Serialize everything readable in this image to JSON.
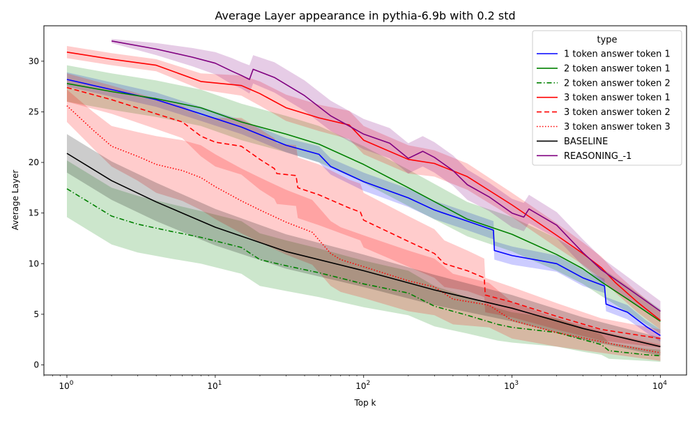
{
  "chart_data": {
    "type": "line",
    "title": "Average Layer appearance in pythia-6.9b with 0.2 std",
    "xlabel": "Top k",
    "ylabel": "Average Layer",
    "xscale": "log",
    "xlim": [
      0.7,
      15000
    ],
    "ylim": [
      -1,
      33.5
    ],
    "x_ticks": [
      {
        "value": 1,
        "base": "10",
        "exp": "0"
      },
      {
        "value": 10,
        "base": "10",
        "exp": "1"
      },
      {
        "value": 100,
        "base": "10",
        "exp": "2"
      },
      {
        "value": 1000,
        "base": "10",
        "exp": "3"
      },
      {
        "value": 10000,
        "base": "10",
        "exp": "4"
      }
    ],
    "y_ticks": [
      {
        "value": 0,
        "label": "0"
      },
      {
        "value": 5,
        "label": "5"
      },
      {
        "value": 10,
        "label": "10"
      },
      {
        "value": 15,
        "label": "15"
      },
      {
        "value": 20,
        "label": "20"
      },
      {
        "value": 25,
        "label": "25"
      },
      {
        "value": 30,
        "label": "30"
      }
    ],
    "grid": false,
    "legend": {
      "title": "type",
      "placement": "top-right"
    },
    "series": [
      {
        "name": "1 token answer token 1",
        "color": "#0000ff",
        "dash": "solid",
        "x": [
          1,
          2,
          4,
          8,
          15,
          30,
          50,
          60,
          100,
          200,
          300,
          500,
          750,
          760,
          1000,
          2000,
          3000,
          4200,
          4300,
          6000,
          8000,
          10000
        ],
        "y": [
          28.2,
          27.2,
          26.2,
          24.8,
          23.5,
          21.7,
          20.8,
          19.6,
          18.1,
          16.5,
          15.3,
          14.2,
          13.3,
          11.3,
          10.8,
          10.0,
          8.6,
          7.8,
          6.0,
          5.2,
          3.8,
          2.9
        ],
        "band": [
          0.7,
          0.7,
          0.7,
          0.7,
          0.7,
          0.7,
          0.8,
          0.8,
          0.9,
          0.9,
          0.9,
          0.9,
          0.9,
          0.9,
          0.9,
          0.8,
          0.8,
          0.7,
          0.7,
          0.7,
          0.6,
          0.6
        ]
      },
      {
        "name": "2 token answer token 1",
        "color": "#008000",
        "dash": "solid",
        "x": [
          1,
          2,
          4,
          8,
          15,
          30,
          50,
          100,
          200,
          500,
          1000,
          2000,
          3000,
          4000,
          6000,
          10000
        ],
        "y": [
          27.8,
          27.0,
          26.3,
          25.4,
          24.0,
          22.8,
          21.8,
          19.8,
          17.5,
          14.4,
          12.9,
          10.9,
          9.5,
          8.2,
          6.5,
          4.3
        ],
        "band": [
          1.8,
          1.8,
          1.8,
          1.8,
          1.8,
          1.8,
          1.8,
          1.8,
          1.8,
          1.7,
          1.7,
          1.6,
          1.5,
          1.4,
          1.3,
          1.2
        ]
      },
      {
        "name": "2 token answer token 2",
        "color": "#008000",
        "dash": "dashdot",
        "x": [
          1,
          2,
          3,
          5,
          8,
          15,
          20,
          30,
          50,
          100,
          200,
          300,
          500,
          800,
          1000,
          2000,
          3000,
          4000,
          4500,
          6000,
          8000,
          10000
        ],
        "y": [
          17.4,
          14.7,
          13.9,
          13.2,
          12.6,
          11.6,
          10.4,
          9.8,
          9.1,
          8.0,
          7.1,
          5.8,
          4.9,
          4.0,
          3.7,
          3.2,
          2.5,
          2.0,
          1.4,
          1.2,
          1.0,
          0.9
        ],
        "band": [
          2.8,
          2.8,
          2.8,
          2.7,
          2.6,
          2.6,
          2.6,
          2.5,
          2.4,
          2.3,
          2.2,
          2.0,
          1.8,
          1.6,
          1.5,
          1.4,
          1.2,
          1.0,
          0.8,
          0.7,
          0.6,
          0.6
        ]
      },
      {
        "name": "3 token answer token 1",
        "color": "#ff0000",
        "dash": "solid",
        "x": [
          1,
          2,
          4,
          8,
          15,
          20,
          30,
          50,
          80,
          100,
          200,
          300,
          500,
          1000,
          2000,
          3000,
          4000,
          5000,
          7000,
          10000
        ],
        "y": [
          30.9,
          30.2,
          29.6,
          28.0,
          27.6,
          26.8,
          25.4,
          24.4,
          23.7,
          22.2,
          20.3,
          19.9,
          18.6,
          15.8,
          12.8,
          11.0,
          9.6,
          8.1,
          6.2,
          4.4
        ],
        "band": [
          0.6,
          0.6,
          0.6,
          0.8,
          1.0,
          1.2,
          1.3,
          1.3,
          1.4,
          1.4,
          1.4,
          1.3,
          1.3,
          1.2,
          1.2,
          1.1,
          1.1,
          1.0,
          1.0,
          0.9
        ]
      },
      {
        "name": "3 token answer token 2",
        "color": "#ff0000",
        "dash": "dashed",
        "x": [
          1,
          2,
          4,
          6,
          8,
          10,
          15,
          20,
          25,
          26,
          35,
          36,
          50,
          80,
          95,
          100,
          200,
          300,
          350,
          500,
          650,
          660,
          1000,
          2000,
          4000,
          10000
        ],
        "y": [
          27.4,
          26.2,
          24.8,
          24.0,
          22.6,
          22.0,
          21.6,
          20.3,
          19.4,
          18.9,
          18.7,
          17.5,
          16.8,
          15.5,
          15.1,
          14.3,
          12.2,
          11.0,
          10.0,
          9.3,
          8.6,
          6.9,
          6.2,
          4.8,
          3.5,
          2.6
        ],
        "band": [
          1.4,
          1.4,
          1.5,
          1.6,
          2.0,
          2.4,
          2.8,
          3.0,
          3.0,
          3.0,
          3.0,
          3.0,
          3.0,
          2.8,
          2.8,
          2.7,
          2.5,
          2.4,
          2.3,
          2.0,
          1.9,
          1.7,
          1.5,
          1.3,
          1.1,
          0.9
        ]
      },
      {
        "name": "3 token answer token 3",
        "color": "#ff0000",
        "dash": "dotted",
        "x": [
          1,
          1.5,
          2,
          3,
          4,
          6,
          8,
          10,
          15,
          20,
          30,
          45,
          60,
          70,
          100,
          200,
          300,
          400,
          700,
          1000,
          2000,
          5000,
          10000
        ],
        "y": [
          25.6,
          23.2,
          21.6,
          20.6,
          19.8,
          19.2,
          18.5,
          17.6,
          16.2,
          15.3,
          14.1,
          13.1,
          11.0,
          10.4,
          9.7,
          8.3,
          7.7,
          6.5,
          5.9,
          4.4,
          3.2,
          2.0,
          1.2
        ],
        "band": [
          1.6,
          1.8,
          2.0,
          2.4,
          2.8,
          3.0,
          3.2,
          3.2,
          3.2,
          3.2,
          3.2,
          3.2,
          3.2,
          3.2,
          3.1,
          3.0,
          2.8,
          2.5,
          2.2,
          1.8,
          1.4,
          1.0,
          0.8
        ]
      },
      {
        "name": "BASELINE",
        "color": "#000000",
        "dash": "solid",
        "x": [
          1,
          2,
          4,
          10,
          30,
          100,
          300,
          1000,
          3000,
          10000
        ],
        "y": [
          20.9,
          18.2,
          16.1,
          13.6,
          11.2,
          9.3,
          7.4,
          5.6,
          3.6,
          1.8
        ],
        "band": [
          1.9,
          1.9,
          1.9,
          1.8,
          1.7,
          1.6,
          1.5,
          1.3,
          1.1,
          0.9
        ]
      },
      {
        "name": "REASONING_-1",
        "color": "#800080",
        "dash": "solid",
        "x": [
          2,
          4,
          7,
          10,
          13,
          15,
          17,
          18,
          25,
          40,
          60,
          100,
          150,
          200,
          250,
          300,
          400,
          500,
          700,
          1000,
          1200,
          1300,
          2000,
          3000,
          4000,
          6000,
          10000
        ],
        "y": [
          32.0,
          31.2,
          30.4,
          29.8,
          29.0,
          28.6,
          28.2,
          29.2,
          28.4,
          26.6,
          24.6,
          22.8,
          21.9,
          20.4,
          21.1,
          20.5,
          19.2,
          17.8,
          16.6,
          15.0,
          14.6,
          15.4,
          13.8,
          11.1,
          9.4,
          7.6,
          5.3
        ],
        "band": [
          0.2,
          0.6,
          0.9,
          1.1,
          1.3,
          1.3,
          1.4,
          1.4,
          1.5,
          1.5,
          1.5,
          1.5,
          1.5,
          1.5,
          1.5,
          1.5,
          1.5,
          1.5,
          1.4,
          1.4,
          1.4,
          1.4,
          1.3,
          1.3,
          1.2,
          1.1,
          1.0
        ]
      }
    ]
  }
}
